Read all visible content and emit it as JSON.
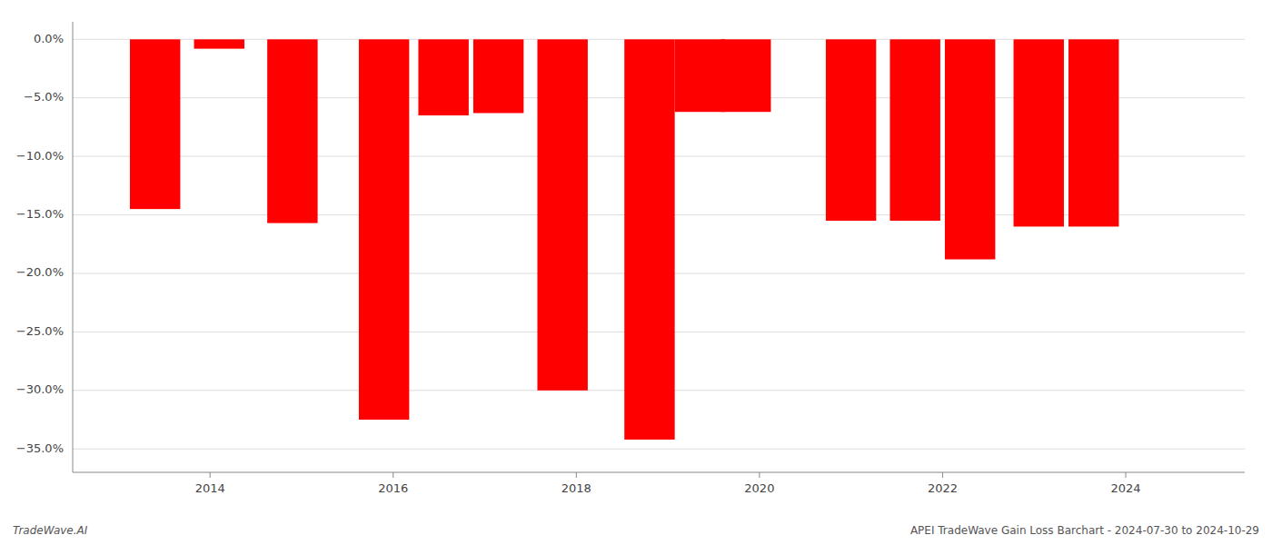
{
  "chart_data": {
    "type": "bar",
    "x": [
      2013.4,
      2014.1,
      2014.9,
      2015.9,
      2016.55,
      2017.15,
      2017.85,
      2018.8,
      2019.35,
      2019.85,
      2021.0,
      2021.7,
      2022.3,
      2023.05,
      2023.65
    ],
    "values": [
      -14.5,
      -0.8,
      -15.7,
      -32.5,
      -6.5,
      -6.3,
      -30.0,
      -34.2,
      -6.2,
      -6.2,
      -15.5,
      -15.5,
      -18.8,
      -16.0,
      -16.0
    ],
    "color": "#ff0000",
    "xlim": [
      2012.5,
      2025.3
    ],
    "xticks": [
      2014,
      2016,
      2018,
      2020,
      2022,
      2024
    ],
    "ylim": [
      -37,
      1.5
    ],
    "yticks": [
      {
        "value": 0,
        "label": "0.0%"
      },
      {
        "value": -5,
        "label": "−5.0%"
      },
      {
        "value": -10,
        "label": "−10.0%"
      },
      {
        "value": -15,
        "label": "−15.0%"
      },
      {
        "value": -20,
        "label": "−20.0%"
      },
      {
        "value": -25,
        "label": "−25.0%"
      },
      {
        "value": -30,
        "label": "−30.0%"
      },
      {
        "value": -35,
        "label": "−35.0%"
      }
    ],
    "grid": true,
    "annotations": [
      "TradeWave.AI",
      "APEI TradeWave Gain Loss Barchart - 2024-07-30 to 2024-10-29"
    ]
  }
}
